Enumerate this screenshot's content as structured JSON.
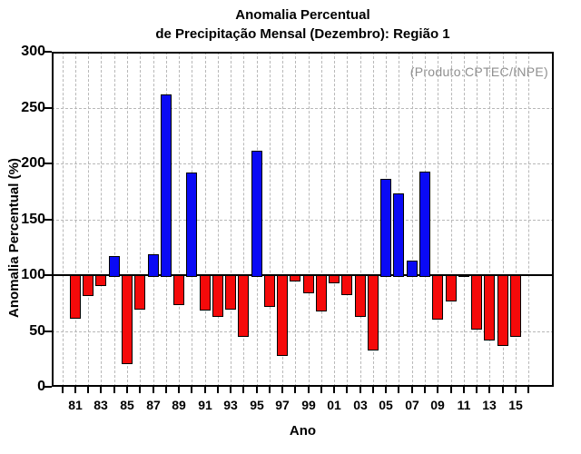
{
  "chart_data": {
    "type": "bar",
    "title_line1": "Anomalia Percentual",
    "title_line2": "de Precipitação Mensal (Dezembro): Região 1",
    "watermark": "(Produto:CPTEC/INPE)",
    "xlabel": "Ano",
    "ylabel": "Anomalia Percentual (%)",
    "baseline_value": 100,
    "ylim": [
      0,
      300
    ],
    "grid": true,
    "legend": "none",
    "ytick_values": [
      0,
      50,
      100,
      150,
      200,
      250,
      300
    ],
    "ytick_labels": [
      "0",
      "50",
      "100",
      "150",
      "200",
      "250",
      "300"
    ],
    "xtick_labels": [
      "81",
      "83",
      "85",
      "87",
      "89",
      "91",
      "93",
      "95",
      "97",
      "99",
      "01",
      "03",
      "05",
      "07",
      "09",
      "11",
      "13",
      "15"
    ],
    "categories": [
      "81",
      "82",
      "83",
      "84",
      "85",
      "86",
      "87",
      "88",
      "89",
      "90",
      "91",
      "92",
      "93",
      "94",
      "95",
      "96",
      "97",
      "98",
      "99",
      "00",
      "01",
      "02",
      "03",
      "04",
      "05",
      "06",
      "07",
      "08",
      "09",
      "10",
      "11",
      "12",
      "13",
      "14",
      "15"
    ],
    "values": [
      63,
      83,
      92,
      117,
      22,
      71,
      119,
      262,
      75,
      192,
      70,
      64,
      71,
      46,
      211,
      73,
      29,
      96,
      85,
      69,
      94,
      84,
      64,
      34,
      186,
      173,
      113,
      193,
      62,
      78,
      100,
      53,
      43,
      38,
      46
    ],
    "colors": {
      "above_baseline": "#0a0af5",
      "below_baseline": "#f50a0a",
      "bar_outline": "#000000",
      "gridline": "#b8b8b8",
      "axis": "#000000",
      "watermark_text": "#8f8f8f"
    }
  }
}
